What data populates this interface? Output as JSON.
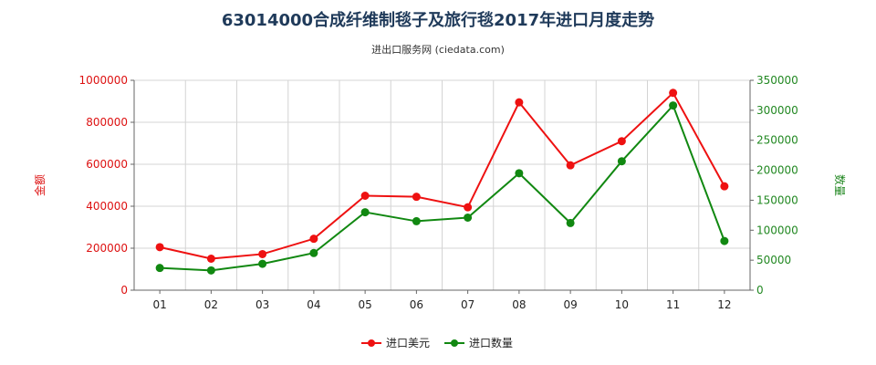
{
  "title": "63014000合成纤维制毯子及旅行毯2017年进口月度走势",
  "subtitle": "进出口服务网 (ciedata.com)",
  "chart_data": {
    "type": "line",
    "title": "63014000合成纤维制毯子及旅行毯2017年进口月度走势",
    "categories": [
      "01",
      "02",
      "03",
      "04",
      "05",
      "06",
      "07",
      "08",
      "09",
      "10",
      "11",
      "12"
    ],
    "y_left": {
      "label": "金额",
      "ylim": [
        0,
        1000000
      ],
      "ticks": [
        "0",
        "200000",
        "400000",
        "600000",
        "800000",
        "1000000"
      ]
    },
    "y_right": {
      "label": "数量",
      "ylim": [
        0,
        350000
      ],
      "ticks": [
        "0",
        "50000",
        "100000",
        "150000",
        "200000",
        "250000",
        "300000",
        "350000"
      ]
    },
    "series": [
      {
        "name": "进口美元",
        "axis": "left",
        "color": "#ee1111",
        "values": [
          205000,
          150000,
          172000,
          245000,
          450000,
          445000,
          395000,
          895000,
          595000,
          710000,
          940000,
          495000
        ]
      },
      {
        "name": "进口数量",
        "axis": "right",
        "color": "#118811",
        "values": [
          37000,
          33000,
          44000,
          62000,
          130000,
          115000,
          121000,
          195000,
          112000,
          215000,
          308000,
          82000
        ]
      }
    ],
    "grid": true,
    "legend": "bottom"
  }
}
